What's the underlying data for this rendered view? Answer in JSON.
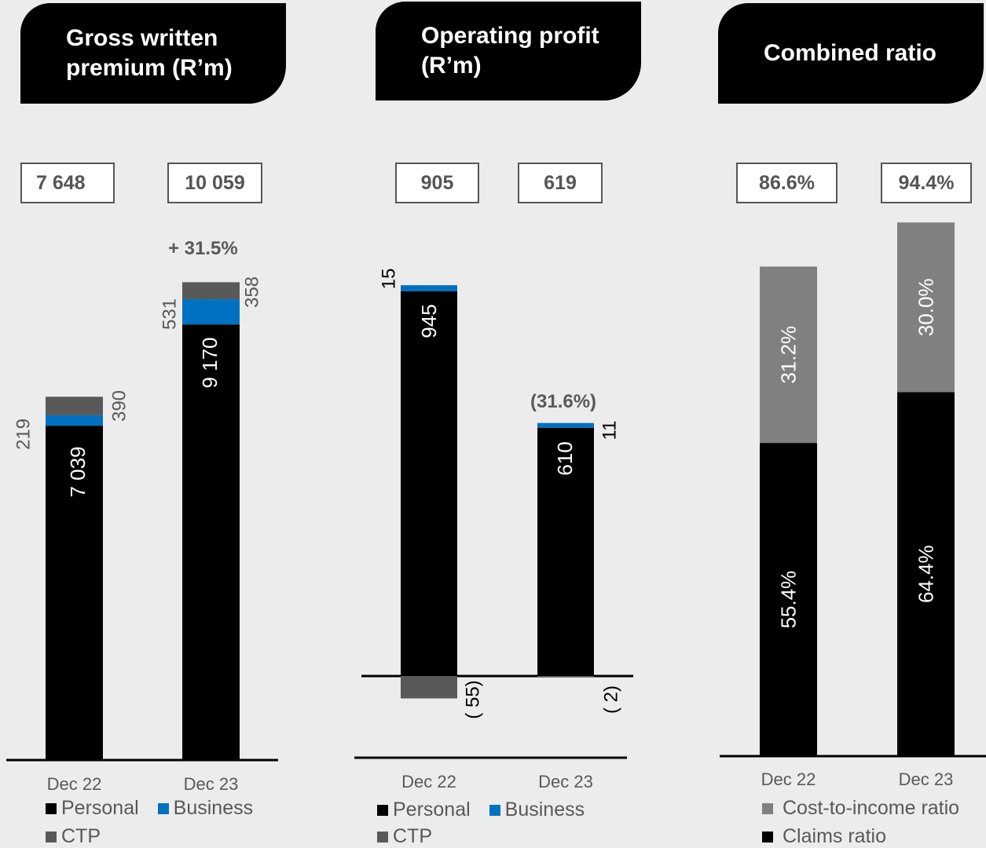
{
  "headers": {
    "gwp": "Gross written premium (R’m)",
    "op": "Operating profit (R’m)",
    "cr": "Combined ratio"
  },
  "totals": {
    "gwp": [
      "7 648",
      "10 059"
    ],
    "op": [
      "905",
      "619"
    ],
    "cr": [
      "86.6%",
      "94.4%"
    ]
  },
  "changes": {
    "gwp": "+ 31.5%",
    "op": "(31.6%)"
  },
  "colors": {
    "personal": "#000000",
    "business": "#0070c0",
    "ctp": "#595959",
    "cost": "#808080",
    "claims": "#000000"
  },
  "chart_data": [
    {
      "type": "bar",
      "title": "Gross written premium (R’m)",
      "stacked": true,
      "categories": [
        "Dec 22",
        "Dec 23"
      ],
      "series": [
        {
          "name": "Personal",
          "values": [
            7039,
            9170
          ],
          "labels": [
            "7 039",
            "9 170"
          ]
        },
        {
          "name": "Business",
          "values": [
            219,
            531
          ],
          "labels": [
            "219",
            "531"
          ]
        },
        {
          "name": "CTP",
          "values": [
            390,
            358
          ],
          "labels": [
            "390",
            "358"
          ]
        }
      ],
      "legend": "bottom"
    },
    {
      "type": "bar",
      "title": "Operating profit (R’m)",
      "stacked": true,
      "categories": [
        "Dec 22",
        "Dec 23"
      ],
      "series": [
        {
          "name": "Personal",
          "values": [
            945,
            610
          ],
          "labels": [
            "945",
            "610"
          ]
        },
        {
          "name": "Business",
          "values": [
            15,
            11
          ],
          "labels": [
            "15",
            "11"
          ]
        },
        {
          "name": "CTP",
          "values": [
            -55,
            -2
          ],
          "labels": [
            "( 55)",
            "( 2)"
          ]
        }
      ],
      "legend": "bottom"
    },
    {
      "type": "bar",
      "title": "Combined ratio",
      "stacked": true,
      "categories": [
        "Dec 22",
        "Dec 23"
      ],
      "series": [
        {
          "name": "Claims ratio",
          "values": [
            55.4,
            64.4
          ],
          "labels": [
            "55.4%",
            "64.4%"
          ]
        },
        {
          "name": "Cost-to-income ratio",
          "values": [
            31.2,
            30.0
          ],
          "labels": [
            "31.2%",
            "30.0%"
          ]
        }
      ],
      "legend": "bottom"
    }
  ],
  "legends": {
    "gwp": [
      "Personal",
      "Business",
      "CTP"
    ],
    "op": [
      "Personal",
      "Business",
      "CTP"
    ],
    "cr": [
      "Cost-to-income ratio",
      "Claims ratio"
    ]
  }
}
